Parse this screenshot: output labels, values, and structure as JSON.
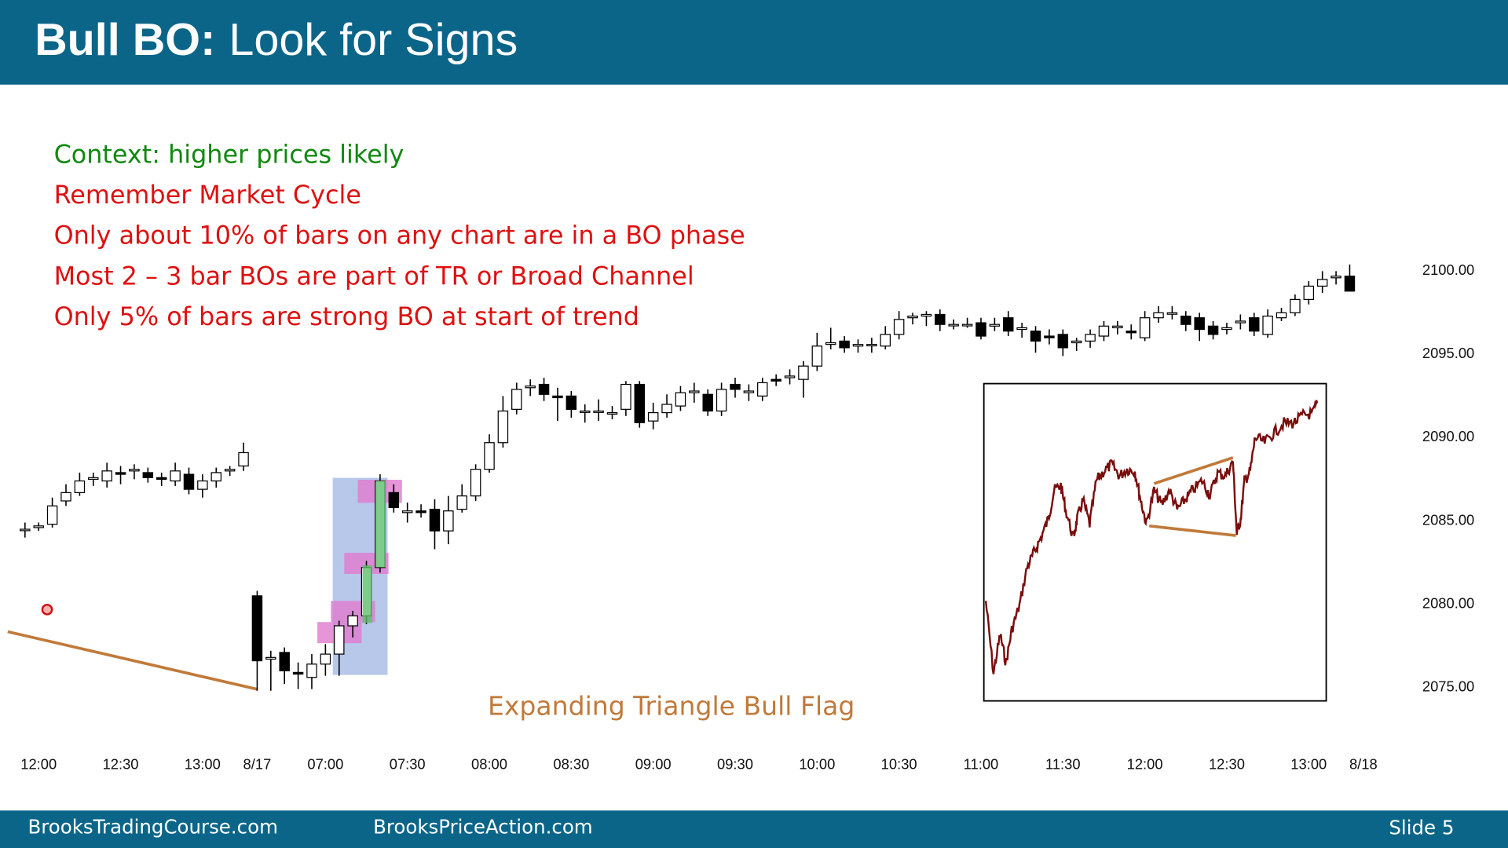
{
  "header": {
    "title_bold": "Bull BO:",
    "title": "Look for Signs"
  },
  "bullets": [
    {
      "text": "Context: higher prices likely",
      "color": "#118811"
    },
    {
      "text": "Remember Market Cycle",
      "color": "#dd1111"
    },
    {
      "text": "Only about 10% of bars on any chart are in a BO phase",
      "color": "#dd1111"
    },
    {
      "text": "Most 2 – 3 bar BOs are part of TR or Broad Channel",
      "color": "#dd1111"
    },
    {
      "text": "Only 5% of bars are strong BO at start of trend",
      "color": "#dd1111"
    }
  ],
  "chart_data": {
    "type": "candlestick",
    "annotation": "Expanding Triangle Bull Flag",
    "up_color": "#ffffff",
    "down_color": "#000000",
    "xlim": [
      -1,
      99
    ],
    "ylim": [
      2074,
      2101
    ],
    "xticks": [
      {
        "value": 1,
        "label": "12:00"
      },
      {
        "value": 7,
        "label": "12:30"
      },
      {
        "value": 13,
        "label": "13:00"
      },
      {
        "value": 17,
        "label": "8/17"
      },
      {
        "value": 22,
        "label": "07:00"
      },
      {
        "value": 28,
        "label": "07:30"
      },
      {
        "value": 34,
        "label": "08:00"
      },
      {
        "value": 40,
        "label": "08:30"
      },
      {
        "value": 46,
        "label": "09:00"
      },
      {
        "value": 52,
        "label": "09:30"
      },
      {
        "value": 58,
        "label": "10:00"
      },
      {
        "value": 64,
        "label": "10:30"
      },
      {
        "value": 70,
        "label": "11:00"
      },
      {
        "value": 76,
        "label": "11:30"
      },
      {
        "value": 82,
        "label": "12:00"
      },
      {
        "value": 88,
        "label": "12:30"
      },
      {
        "value": 94,
        "label": "13:00"
      },
      {
        "value": 98,
        "label": "8/18"
      }
    ],
    "yticks": [
      {
        "value": 2075,
        "label": "2075.00"
      },
      {
        "value": 2080,
        "label": "2080.00"
      },
      {
        "value": 2085,
        "label": "2085.00"
      },
      {
        "value": 2090,
        "label": "2090.00"
      },
      {
        "value": 2095,
        "label": "2095.00"
      },
      {
        "value": 2100,
        "label": "2100.00"
      }
    ],
    "candles": [
      [
        2084.5,
        2084.9,
        2084.0,
        2084.5
      ],
      [
        2084.6,
        2084.9,
        2084.4,
        2084.7
      ],
      [
        2084.8,
        2086.4,
        2084.6,
        2085.9
      ],
      [
        2086.2,
        2087.2,
        2085.9,
        2086.7
      ],
      [
        2086.7,
        2087.9,
        2086.5,
        2087.4
      ],
      [
        2087.5,
        2087.9,
        2087.1,
        2087.6
      ],
      [
        2087.4,
        2088.5,
        2087.0,
        2088.0
      ],
      [
        2087.9,
        2088.3,
        2087.2,
        2087.8
      ],
      [
        2088.0,
        2088.4,
        2087.5,
        2088.1
      ],
      [
        2087.9,
        2088.2,
        2087.3,
        2087.6
      ],
      [
        2087.6,
        2087.9,
        2087.1,
        2087.5
      ],
      [
        2087.4,
        2088.5,
        2087.1,
        2088.0
      ],
      [
        2087.8,
        2088.2,
        2086.6,
        2086.9
      ],
      [
        2086.9,
        2087.8,
        2086.4,
        2087.4
      ],
      [
        2087.4,
        2088.2,
        2087.0,
        2087.9
      ],
      [
        2088.0,
        2088.3,
        2087.7,
        2088.1
      ],
      [
        2088.3,
        2089.7,
        2088.0,
        2089.1
      ],
      [
        2080.5,
        2080.8,
        2074.8,
        2076.6
      ],
      [
        2076.7,
        2077.2,
        2074.8,
        2076.8
      ],
      [
        2077.1,
        2077.4,
        2075.2,
        2076.0
      ],
      [
        2075.9,
        2076.5,
        2074.9,
        2075.8
      ],
      [
        2075.6,
        2077.0,
        2074.9,
        2076.4
      ],
      [
        2076.4,
        2077.6,
        2075.7,
        2077.0
      ],
      [
        2077.0,
        2079.0,
        2075.7,
        2078.7
      ],
      [
        2078.7,
        2079.6,
        2078.0,
        2079.3
      ],
      [
        2079.3,
        2082.6,
        2078.8,
        2082.2
      ],
      [
        2082.2,
        2087.8,
        2081.9,
        2087.4
      ],
      [
        2086.7,
        2087.2,
        2085.5,
        2085.8
      ],
      [
        2085.5,
        2086.1,
        2084.9,
        2085.6
      ],
      [
        2085.6,
        2086.0,
        2085.2,
        2085.5
      ],
      [
        2085.7,
        2086.3,
        2083.3,
        2084.4
      ],
      [
        2084.4,
        2086.5,
        2083.6,
        2085.6
      ],
      [
        2085.7,
        2087.2,
        2085.5,
        2086.5
      ],
      [
        2086.5,
        2088.4,
        2086.2,
        2088.1
      ],
      [
        2088.1,
        2090.2,
        2087.9,
        2089.7
      ],
      [
        2089.7,
        2092.5,
        2089.4,
        2091.6
      ],
      [
        2091.7,
        2093.3,
        2091.4,
        2092.9
      ],
      [
        2093.0,
        2093.5,
        2092.5,
        2093.1
      ],
      [
        2093.2,
        2093.6,
        2092.2,
        2092.6
      ],
      [
        2092.5,
        2093.0,
        2091.0,
        2092.4
      ],
      [
        2092.5,
        2092.8,
        2091.2,
        2091.7
      ],
      [
        2091.6,
        2092.0,
        2090.9,
        2091.6
      ],
      [
        2091.6,
        2092.3,
        2091.0,
        2091.6
      ],
      [
        2091.5,
        2091.9,
        2091.1,
        2091.5
      ],
      [
        2091.7,
        2093.4,
        2091.3,
        2093.2
      ],
      [
        2093.2,
        2093.4,
        2090.6,
        2090.9
      ],
      [
        2091.0,
        2092.1,
        2090.5,
        2091.5
      ],
      [
        2091.5,
        2092.6,
        2091.2,
        2092.0
      ],
      [
        2091.9,
        2093.1,
        2091.6,
        2092.7
      ],
      [
        2092.7,
        2093.3,
        2092.1,
        2092.8
      ],
      [
        2092.6,
        2092.9,
        2091.3,
        2091.6
      ],
      [
        2091.6,
        2093.3,
        2091.3,
        2092.9
      ],
      [
        2093.2,
        2093.6,
        2092.4,
        2092.9
      ],
      [
        2092.7,
        2093.2,
        2092.2,
        2092.8
      ],
      [
        2092.5,
        2093.6,
        2092.2,
        2093.3
      ],
      [
        2093.5,
        2093.8,
        2093.1,
        2093.4
      ],
      [
        2093.6,
        2094.1,
        2093.2,
        2093.7
      ],
      [
        2093.5,
        2094.6,
        2092.4,
        2094.3
      ],
      [
        2094.3,
        2096.3,
        2094.0,
        2095.5
      ],
      [
        2095.6,
        2096.6,
        2095.3,
        2095.7
      ],
      [
        2095.8,
        2096.1,
        2095.1,
        2095.4
      ],
      [
        2095.5,
        2095.9,
        2095.1,
        2095.6
      ],
      [
        2095.6,
        2096.0,
        2095.1,
        2095.6
      ],
      [
        2095.5,
        2096.7,
        2095.3,
        2096.2
      ],
      [
        2096.2,
        2097.6,
        2095.9,
        2097.1
      ],
      [
        2097.2,
        2097.5,
        2096.8,
        2097.3
      ],
      [
        2097.3,
        2097.6,
        2096.7,
        2097.4
      ],
      [
        2097.4,
        2097.7,
        2096.4,
        2096.8
      ],
      [
        2096.8,
        2097.1,
        2096.5,
        2096.8
      ],
      [
        2096.8,
        2097.2,
        2096.6,
        2096.8
      ],
      [
        2096.9,
        2097.2,
        2095.9,
        2096.1
      ],
      [
        2096.7,
        2097.2,
        2096.4,
        2096.8
      ],
      [
        2097.2,
        2097.6,
        2096.1,
        2096.4
      ],
      [
        2096.5,
        2096.9,
        2096.0,
        2096.6
      ],
      [
        2096.4,
        2096.7,
        2095.1,
        2095.8
      ],
      [
        2096.1,
        2096.5,
        2095.6,
        2096.0
      ],
      [
        2096.2,
        2096.5,
        2094.9,
        2095.4
      ],
      [
        2095.7,
        2096.0,
        2095.2,
        2095.8
      ],
      [
        2095.8,
        2096.5,
        2095.4,
        2096.2
      ],
      [
        2096.1,
        2097.0,
        2095.8,
        2096.7
      ],
      [
        2096.6,
        2097.0,
        2096.2,
        2096.7
      ],
      [
        2096.4,
        2096.8,
        2095.9,
        2096.3
      ],
      [
        2096.0,
        2097.6,
        2095.8,
        2097.2
      ],
      [
        2097.2,
        2097.9,
        2096.9,
        2097.5
      ],
      [
        2097.5,
        2097.9,
        2097.1,
        2097.5
      ],
      [
        2097.3,
        2097.6,
        2096.4,
        2096.8
      ],
      [
        2097.2,
        2097.5,
        2095.8,
        2096.5
      ],
      [
        2096.7,
        2097.0,
        2095.9,
        2096.2
      ],
      [
        2096.5,
        2096.9,
        2096.2,
        2096.6
      ],
      [
        2096.9,
        2097.4,
        2096.5,
        2097.0
      ],
      [
        2097.2,
        2097.5,
        2096.1,
        2096.4
      ],
      [
        2096.2,
        2097.7,
        2096.0,
        2097.3
      ],
      [
        2097.2,
        2097.8,
        2097.0,
        2097.5
      ],
      [
        2097.5,
        2098.6,
        2097.3,
        2098.3
      ],
      [
        2098.3,
        2099.4,
        2098.0,
        2099.1
      ],
      [
        2099.1,
        2100.0,
        2098.7,
        2099.5
      ],
      [
        2099.6,
        2100.0,
        2099.2,
        2099.7
      ],
      [
        2099.7,
        2100.4,
        2098.8,
        2098.8
      ]
    ]
  },
  "footer": {
    "left": "BrooksTradingCourse.com",
    "center": "BrooksPriceAction.com",
    "right": "Slide  5"
  }
}
